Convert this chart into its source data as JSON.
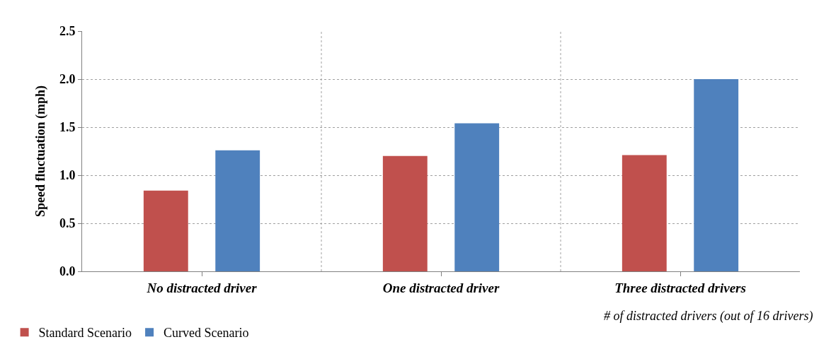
{
  "chart_data": {
    "type": "bar",
    "ylabel": "Speed fluctuation (mph)",
    "xlabel": "# of distracted drivers (out of 16 drivers)",
    "categories": [
      "No distracted driver",
      "One distracted driver",
      "Three distracted drivers"
    ],
    "series": [
      {
        "name": "Standard Scenario",
        "color": "#c0504d",
        "values": [
          0.84,
          1.2,
          1.21
        ]
      },
      {
        "name": "Curved Scenario",
        "color": "#4f81bd",
        "values": [
          1.26,
          1.54,
          2.0
        ]
      }
    ],
    "ylim": [
      0,
      2.5
    ],
    "yticks": [
      {
        "value": 0,
        "label": "0.0"
      },
      {
        "value": 0.5,
        "label": "0.5"
      },
      {
        "value": 1,
        "label": "1.0"
      },
      {
        "value": 1.5,
        "label": "1.5"
      },
      {
        "value": 2,
        "label": "2.0"
      },
      {
        "value": 2.5,
        "label": "2.5"
      }
    ],
    "grid": true,
    "legend": "bottom left"
  }
}
